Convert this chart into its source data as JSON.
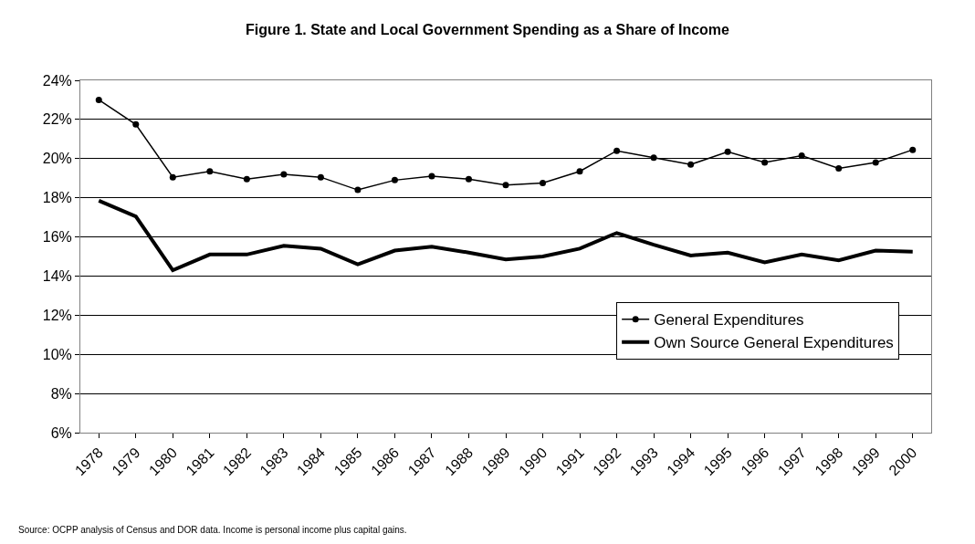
{
  "chart_data": {
    "type": "line",
    "title": "Figure 1. State and Local Government Spending as a Share of Income",
    "categories": [
      "1978",
      "1979",
      "1980",
      "1981",
      "1982",
      "1983",
      "1984",
      "1985",
      "1986",
      "1987",
      "1988",
      "1989",
      "1990",
      "1991",
      "1992",
      "1993",
      "1994",
      "1995",
      "1996",
      "1997",
      "1998",
      "1999",
      "2000"
    ],
    "series": [
      {
        "name": "General Expenditures",
        "color": "#000000",
        "marker": "circle",
        "values": [
          23.0,
          21.75,
          19.05,
          19.35,
          18.95,
          19.2,
          19.05,
          18.4,
          18.9,
          19.1,
          18.95,
          18.65,
          18.75,
          19.35,
          20.4,
          20.05,
          19.7,
          20.35,
          19.8,
          20.15,
          19.5,
          19.8,
          20.45
        ]
      },
      {
        "name": "Own Source General Expenditures",
        "color": "#000000",
        "marker": "none",
        "values": [
          17.85,
          17.05,
          14.3,
          15.1,
          15.1,
          15.55,
          15.4,
          14.6,
          15.3,
          15.5,
          15.2,
          14.85,
          15.0,
          15.4,
          16.2,
          15.6,
          15.05,
          15.2,
          14.7,
          15.1,
          14.8,
          15.3,
          15.25
        ]
      }
    ],
    "ylim": [
      6,
      24
    ],
    "yticks": [
      {
        "value": 6,
        "label": "6%"
      },
      {
        "value": 8,
        "label": "8%"
      },
      {
        "value": 10,
        "label": "10%"
      },
      {
        "value": 12,
        "label": "12%"
      },
      {
        "value": 14,
        "label": "14%"
      },
      {
        "value": 16,
        "label": "16%"
      },
      {
        "value": 18,
        "label": "18%"
      },
      {
        "value": 20,
        "label": "20%"
      },
      {
        "value": 22,
        "label": "22%"
      },
      {
        "value": 24,
        "label": "24%"
      }
    ],
    "grid": "y",
    "legend": "bottom right",
    "line_style": "solid",
    "annotations": [
      "Source: OCPP analysis of Census and DOR data. Income is personal income plus capital gains."
    ]
  }
}
